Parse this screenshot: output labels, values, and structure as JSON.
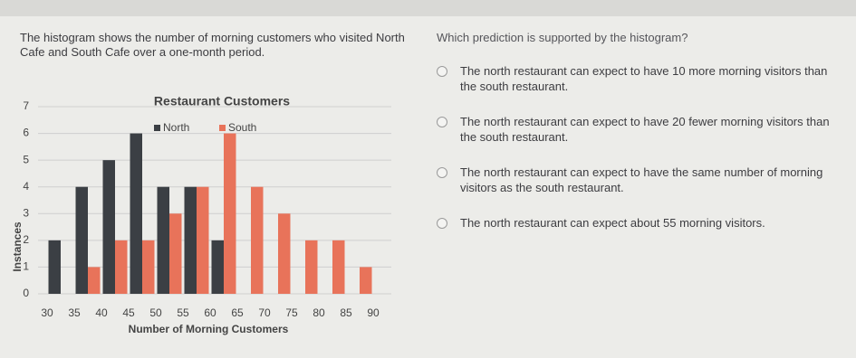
{
  "question": {
    "stem": "The histogram shows the number of morning customers who visited North Cafe and South Cafe over a one-month period.",
    "prompt": "Which prediction is supported by the histogram?",
    "options": [
      "The north restaurant can expect to have 10 more morning visitors than the south restaurant.",
      "The north restaurant can expect to have 20 fewer morning visitors than the south restaurant.",
      "The north restaurant can expect to have the same number of morning visitors as the south restaurant.",
      "The north restaurant can expect about 55 morning visitors."
    ]
  },
  "chart_data": {
    "type": "histogram",
    "title": "Restaurant Customers",
    "x_label": "Number of Morning Customers",
    "y_label": "Instances",
    "bins": [
      30,
      35,
      40,
      45,
      50,
      55,
      60,
      65,
      70,
      75,
      80,
      85,
      90
    ],
    "series": [
      {
        "name": "North",
        "color": "#3b3f44",
        "values": [
          2,
          4,
          5,
          6,
          4,
          4,
          2,
          0,
          0,
          0,
          0,
          0
        ]
      },
      {
        "name": "South",
        "color": "#e8735a",
        "values": [
          0,
          1,
          2,
          2,
          3,
          4,
          6,
          4,
          3,
          2,
          2,
          1
        ]
      }
    ],
    "xlim": [
      30,
      90
    ],
    "xticks": [
      30,
      35,
      40,
      45,
      50,
      55,
      60,
      65,
      70,
      75,
      80,
      85,
      90
    ],
    "ylim": [
      0,
      7
    ],
    "yticks": [
      0,
      1,
      2,
      3,
      4,
      5,
      6,
      7
    ],
    "grid": true,
    "legend": "top"
  }
}
